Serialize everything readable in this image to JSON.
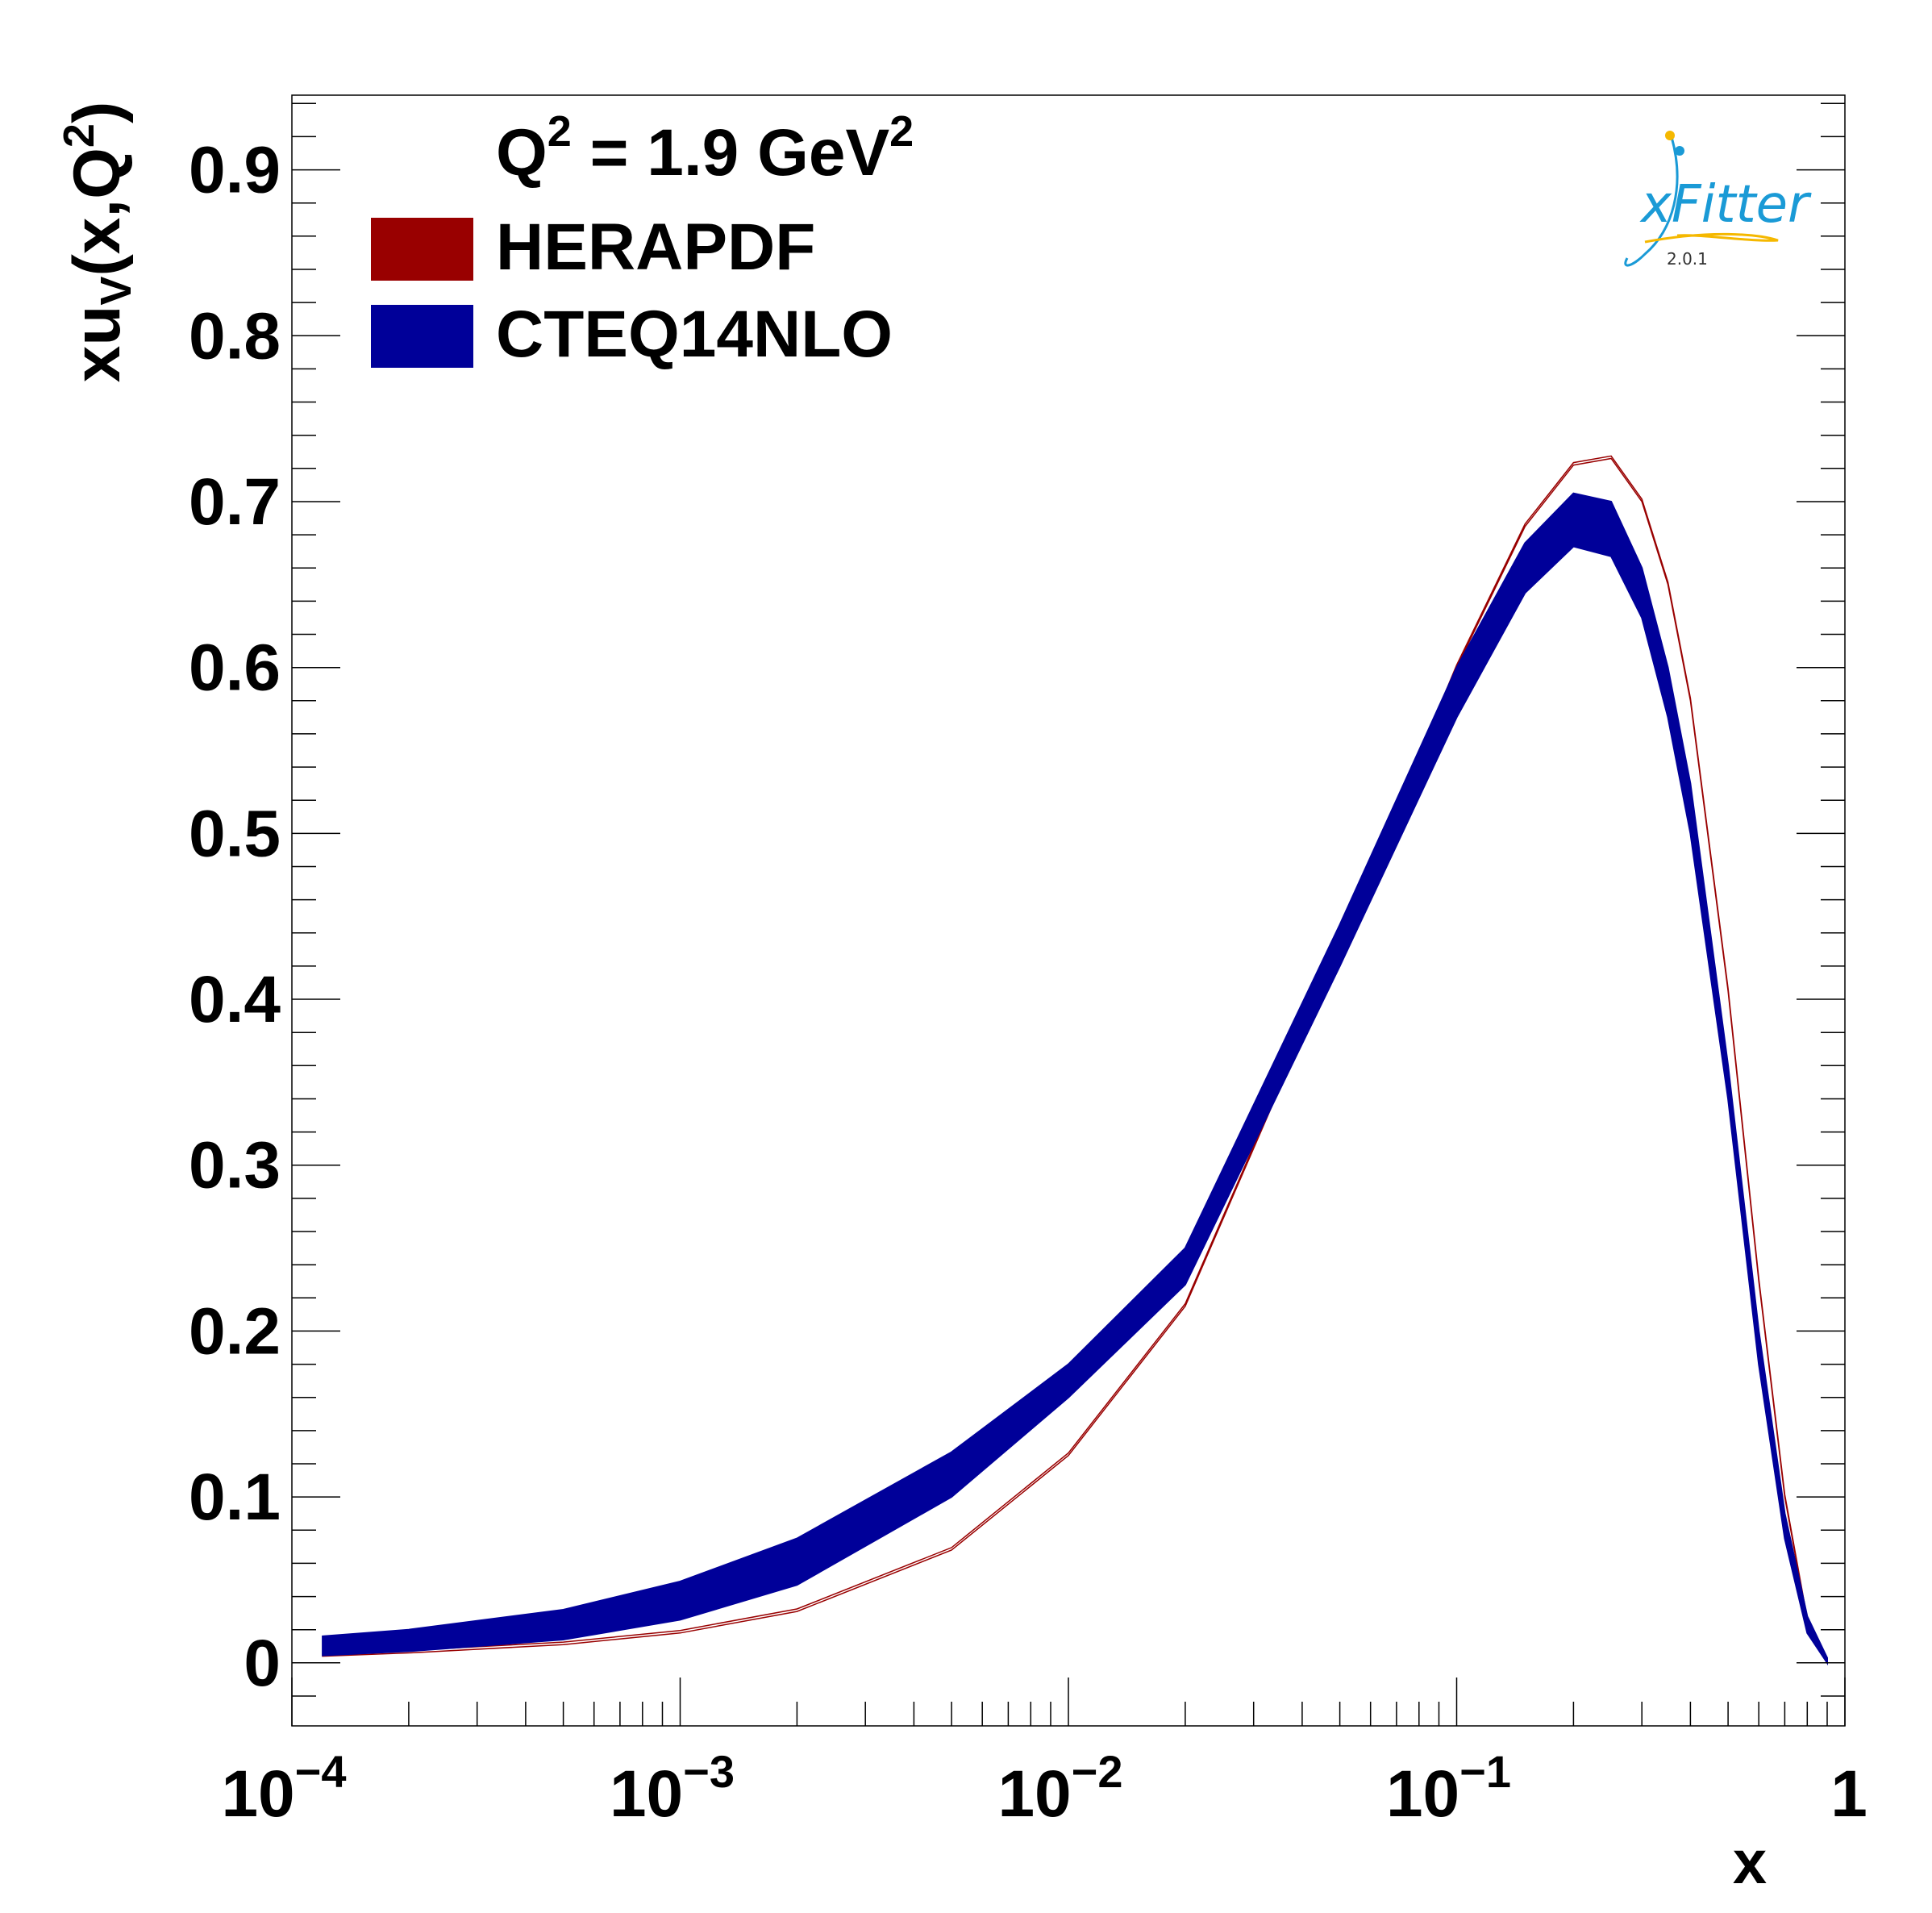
{
  "chart_data": {
    "type": "area",
    "title": "",
    "annotation": {
      "base": "Q",
      "sup1": "2",
      "mid": " = 1.9 GeV",
      "sup2": "2"
    },
    "xlabel": "x",
    "ylabel": {
      "pre": "xu",
      "sub": "V",
      "mid": "(x,Q",
      "sup": "2",
      "post": ")"
    },
    "x_scale": "log",
    "xlim": [
      0.0001,
      1
    ],
    "ylim": [
      -0.038,
      0.945
    ],
    "x_ticks": [
      {
        "value": 0.0001,
        "base": "10",
        "exp": "−4"
      },
      {
        "value": 0.001,
        "base": "10",
        "exp": "−3"
      },
      {
        "value": 0.01,
        "base": "10",
        "exp": "−2"
      },
      {
        "value": 0.1,
        "base": "10",
        "exp": "−1"
      },
      {
        "value": 1,
        "base": "1",
        "exp": ""
      }
    ],
    "y_ticks": [
      {
        "value": 0,
        "label": "0"
      },
      {
        "value": 0.1,
        "label": "0.1"
      },
      {
        "value": 0.2,
        "label": "0.2"
      },
      {
        "value": 0.3,
        "label": "0.3"
      },
      {
        "value": 0.4,
        "label": "0.4"
      },
      {
        "value": 0.5,
        "label": "0.5"
      },
      {
        "value": 0.6,
        "label": "0.6"
      },
      {
        "value": 0.7,
        "label": "0.7"
      },
      {
        "value": 0.8,
        "label": "0.8"
      },
      {
        "value": 0.9,
        "label": "0.9"
      }
    ],
    "legend_position": "top-left",
    "series": [
      {
        "name": "HERAPDF",
        "color": "#990000",
        "x": [
          0.00012,
          0.0002,
          0.0005,
          0.001,
          0.002,
          0.005,
          0.01,
          0.02,
          0.05,
          0.1,
          0.15,
          0.2,
          0.25,
          0.3,
          0.35,
          0.4,
          0.5,
          0.6,
          0.7,
          0.8,
          0.9
        ],
        "lower": [
          0.004,
          0.006,
          0.011,
          0.018,
          0.031,
          0.068,
          0.125,
          0.215,
          0.43,
          0.6,
          0.685,
          0.722,
          0.726,
          0.7,
          0.65,
          0.58,
          0.405,
          0.23,
          0.1,
          0.025,
          0.0
        ],
        "upper": [
          0.0055,
          0.0075,
          0.0125,
          0.0195,
          0.0325,
          0.0695,
          0.1265,
          0.2165,
          0.4315,
          0.6015,
          0.6865,
          0.7235,
          0.7275,
          0.7015,
          0.6515,
          0.5815,
          0.4065,
          0.2315,
          0.1015,
          0.0265,
          0.0015
        ]
      },
      {
        "name": "CTEQ14NLO",
        "color": "#000099",
        "x": [
          0.00012,
          0.0002,
          0.0005,
          0.001,
          0.002,
          0.005,
          0.01,
          0.02,
          0.05,
          0.1,
          0.15,
          0.2,
          0.25,
          0.3,
          0.35,
          0.4,
          0.5,
          0.6,
          0.7,
          0.8,
          0.9
        ],
        "lower": [
          0.0045,
          0.007,
          0.014,
          0.026,
          0.047,
          0.1,
          0.16,
          0.228,
          0.42,
          0.57,
          0.645,
          0.673,
          0.667,
          0.63,
          0.57,
          0.5,
          0.34,
          0.18,
          0.075,
          0.018,
          0.0
        ],
        "upper": [
          0.016,
          0.02,
          0.032,
          0.049,
          0.075,
          0.127,
          0.18,
          0.25,
          0.445,
          0.6,
          0.675,
          0.705,
          0.7,
          0.66,
          0.6,
          0.53,
          0.36,
          0.2,
          0.09,
          0.028,
          0.003
        ]
      }
    ]
  },
  "logo": {
    "name": "xFitter",
    "version": "2.0.1",
    "colors": {
      "text": "#1a9ad6",
      "swoosh_a": "#1a9ad6",
      "swoosh_b": "#f5b800"
    }
  }
}
